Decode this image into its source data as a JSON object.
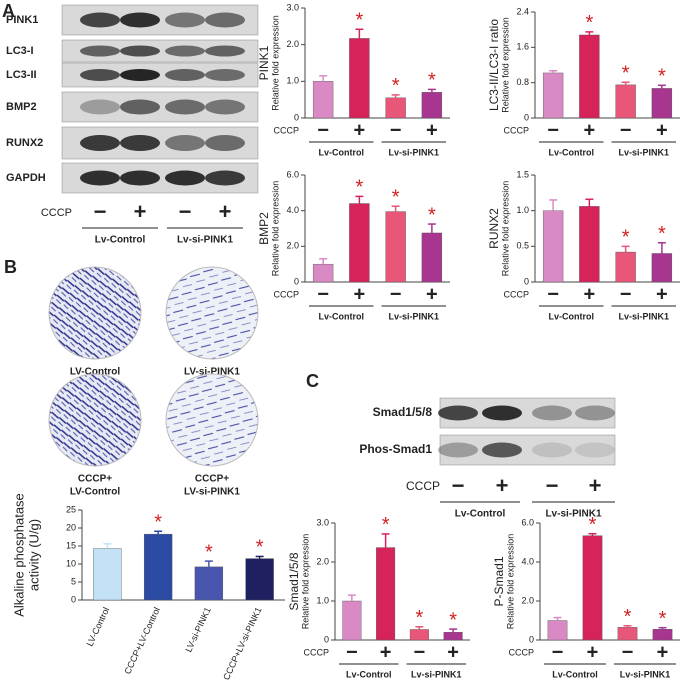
{
  "panels": {
    "A": {
      "letter": "A",
      "blot_labels": [
        "PINK1",
        "LC3-I",
        "LC3-II",
        "BMP2",
        "RUNX2",
        "GAPDH"
      ],
      "treatment": "CCCP",
      "signs": [
        "−",
        "+",
        "−",
        "+"
      ],
      "groups": [
        "Lv-Control",
        "Lv-si-PINK1"
      ]
    },
    "B": {
      "letter": "B",
      "dishes": [
        [
          "LV-Control"
        ],
        [
          "LV-si-PINK1"
        ],
        [
          "CCCP+",
          "LV-Control"
        ],
        [
          "CCCP+",
          "LV-si-PINK1"
        ]
      ]
    },
    "C": {
      "letter": "C",
      "blot_labels": [
        "Smad1/5/8",
        "Phos-Smad1"
      ],
      "treatment": "CCCP",
      "signs": [
        "−",
        "+",
        "−",
        "+"
      ],
      "groups": [
        "Lv-Control",
        "Lv-si-PINK1"
      ]
    }
  },
  "chart_data": [
    {
      "type": "bar",
      "ylabel": "PINK1",
      "ylabel2": "Relative fold expression",
      "x_label": "CCCP",
      "categories": [
        "−",
        "+",
        "−",
        "+"
      ],
      "groups": [
        "Lv-Control",
        "Lv-si-PINK1"
      ],
      "colors": [
        "#d98ac4",
        "#d6245a",
        "#e8577a",
        "#a8358f"
      ],
      "values": [
        1.0,
        2.17,
        0.55,
        0.7
      ],
      "errors": [
        0.15,
        0.25,
        0.08,
        0.08
      ],
      "annotations": [
        null,
        "*",
        "*",
        "*"
      ],
      "ylim": [
        0,
        3
      ],
      "yticks": [
        0,
        {
          "value": 1,
          "label": "1.0"
        },
        {
          "value": 2,
          "label": "2.0"
        },
        {
          "value": 3,
          "label": "3.0"
        }
      ]
    },
    {
      "type": "bar",
      "ylabel": "LC3-II/LC3-I ratio",
      "ylabel2": "Relative fold expression",
      "x_label": "CCCP",
      "categories": [
        "−",
        "+",
        "−",
        "+"
      ],
      "groups": [
        "Lv-Control",
        "Lv-si-PINK1"
      ],
      "colors": [
        "#d98ac4",
        "#d6245a",
        "#e8577a",
        "#a8358f"
      ],
      "values": [
        1.02,
        1.88,
        0.75,
        0.67
      ],
      "errors": [
        0.05,
        0.07,
        0.06,
        0.07
      ],
      "annotations": [
        null,
        "*",
        "*",
        "*"
      ],
      "ylim": [
        0,
        2.4
      ],
      "yticks": [
        0,
        0.8,
        1.6,
        2.4
      ]
    },
    {
      "type": "bar",
      "ylabel": "BMP2",
      "ylabel2": "Relative fold expression",
      "x_label": "CCCP",
      "categories": [
        "−",
        "+",
        "−",
        "+"
      ],
      "groups": [
        "Lv-Control",
        "Lv-si-PINK1"
      ],
      "colors": [
        "#d98ac4",
        "#d6245a",
        "#e8577a",
        "#a8358f"
      ],
      "values": [
        1.0,
        4.4,
        3.95,
        2.75
      ],
      "errors": [
        0.3,
        0.4,
        0.3,
        0.5
      ],
      "annotations": [
        null,
        "*",
        "*",
        "*"
      ],
      "ylim": [
        0,
        6
      ],
      "yticks": [
        0,
        {
          "value": 2,
          "label": "2.0"
        },
        {
          "value": 4,
          "label": "4.0"
        },
        {
          "value": 6,
          "label": "6.0"
        }
      ]
    },
    {
      "type": "bar",
      "ylabel": "RUNX2",
      "ylabel2": "Relative fold expression",
      "x_label": "CCCP",
      "categories": [
        "−",
        "+",
        "−",
        "+"
      ],
      "groups": [
        "Lv-Control",
        "Lv-si-PINK1"
      ],
      "colors": [
        "#d98ac4",
        "#d6245a",
        "#e8577a",
        "#a8358f"
      ],
      "values": [
        1.0,
        1.06,
        0.42,
        0.4
      ],
      "errors": [
        0.15,
        0.1,
        0.08,
        0.15
      ],
      "annotations": [
        null,
        null,
        "*",
        "*"
      ],
      "ylim": [
        0,
        1.5
      ],
      "yticks": [
        0,
        0.5,
        {
          "value": 1,
          "label": "1.0"
        },
        1.5
      ]
    },
    {
      "type": "bar",
      "ylabel": [
        "Alkaline phosphatase",
        "activity (U/g)"
      ],
      "categories": [
        "LV-Control",
        "CCCP+LV-Control",
        "LV-si-PINK1",
        "CCCP+LV-si-PINK1"
      ],
      "colors": [
        "#c4e2f6",
        "#2b4aa3",
        "#4856ad",
        "#1f2060"
      ],
      "values": [
        14.3,
        18.3,
        9.2,
        11.5
      ],
      "errors": [
        1.3,
        0.8,
        1.6,
        0.6
      ],
      "annotations": [
        null,
        "*",
        "*",
        "*"
      ],
      "ylim": [
        0,
        25
      ],
      "yticks": [
        0,
        5,
        10,
        15,
        20,
        25
      ]
    },
    {
      "type": "bar",
      "ylabel": "Smad1/5/8",
      "ylabel2": "Relative fold expression",
      "x_label": "CCCP",
      "categories": [
        "−",
        "+",
        "−",
        "+"
      ],
      "groups": [
        "Lv-Control",
        "Lv-si-PINK1"
      ],
      "colors": [
        "#d98ac4",
        "#d6245a",
        "#e8577a",
        "#a8358f"
      ],
      "values": [
        1.0,
        2.37,
        0.27,
        0.2
      ],
      "errors": [
        0.15,
        0.35,
        0.07,
        0.08
      ],
      "annotations": [
        null,
        "*",
        "*",
        "*"
      ],
      "ylim": [
        0,
        3
      ],
      "yticks": [
        0,
        {
          "value": 1,
          "label": "1.0"
        },
        {
          "value": 2,
          "label": "2.0"
        },
        {
          "value": 3,
          "label": "3.0"
        }
      ]
    },
    {
      "type": "bar",
      "ylabel": "P-Smad1",
      "ylabel2": "Relative fold expression",
      "x_label": "CCCP",
      "categories": [
        "−",
        "+",
        "−",
        "+"
      ],
      "groups": [
        "Lv-Control",
        "Lv-si-PINK1"
      ],
      "colors": [
        "#d98ac4",
        "#d6245a",
        "#e8577a",
        "#a8358f"
      ],
      "values": [
        1.0,
        5.35,
        0.65,
        0.55
      ],
      "errors": [
        0.15,
        0.1,
        0.08,
        0.08
      ],
      "annotations": [
        null,
        "*",
        "*",
        "*"
      ],
      "ylim": [
        0,
        6
      ],
      "yticks": [
        0,
        {
          "value": 2,
          "label": "2.0"
        },
        {
          "value": 4,
          "label": "4.0"
        },
        {
          "value": 6,
          "label": "6.0"
        }
      ]
    }
  ]
}
